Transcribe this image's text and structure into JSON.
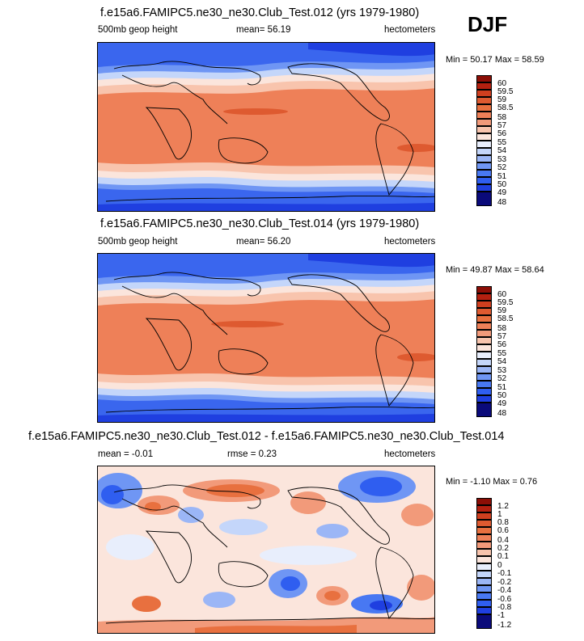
{
  "season": "DJF",
  "colors": {
    "abs": [
      "#0a0a7a",
      "#1f3fe0",
      "#2f5ef0",
      "#4878f2",
      "#6f96f4",
      "#9bb6f6",
      "#c4d6fa",
      "#e8eefc",
      "#fbe5dc",
      "#f8c4ad",
      "#f29a7a",
      "#ee8058",
      "#e8703f",
      "#de5a30",
      "#cf3f1f",
      "#b42010",
      "#8c0e06"
    ],
    "diff": [
      "#0a0a7a",
      "#1f3fe0",
      "#2f5ef0",
      "#4878f2",
      "#6f96f4",
      "#9bb6f6",
      "#c4d6fa",
      "#e8eefc",
      "#fbe5dc",
      "#f8c4ad",
      "#f29a7a",
      "#ee8058",
      "#e8703f",
      "#de5a30",
      "#cf3f1f",
      "#b42010",
      "#8c0e06"
    ]
  },
  "panels": [
    {
      "title": "f.e15a6.FAMIPC5.ne30_ne30.Club_Test.012 (yrs 1979-1980)",
      "left": "500mb geop height",
      "center": "mean=  56.19",
      "right": "hectometers",
      "minmax": "Min =  50.17 Max =  58.59"
    },
    {
      "title": "f.e15a6.FAMIPC5.ne30_ne30.Club_Test.014 (yrs 1979-1980)",
      "left": "500mb geop height",
      "center": "mean=  56.20",
      "right": "hectometers",
      "minmax": "Min =  49.87 Max =  58.64"
    },
    {
      "title": "f.e15a6.FAMIPC5.ne30_ne30.Club_Test.012 - f.e15a6.FAMIPC5.ne30_ne30.Club_Test.014",
      "left": "mean =  -0.01",
      "center": "rmse =   0.23",
      "right": "hectometers",
      "minmax": "Min =  -1.10 Max =   0.76"
    }
  ],
  "chart_data": [
    {
      "type": "heatmap",
      "title": "f.e15a6.FAMIPC5.ne30_ne30.Club_Test.012 (yrs 1979-1980)",
      "variable": "500mb geop height",
      "units": "hectometers",
      "mean": 56.19,
      "min": 50.17,
      "max": 58.59,
      "projection": "cylindrical equidistant, Pacific-centred",
      "colorbar_levels": [
        "48",
        "49",
        "50",
        "51",
        "52",
        "53",
        "54",
        "55",
        "56",
        "57",
        "58",
        "58.5",
        "59",
        "59.5",
        "60"
      ],
      "field_description": "zonal bands: blue at high latitudes, orange in tropics"
    },
    {
      "type": "heatmap",
      "title": "f.e15a6.FAMIPC5.ne30_ne30.Club_Test.014 (yrs 1979-1980)",
      "variable": "500mb geop height",
      "units": "hectometers",
      "mean": 56.2,
      "min": 49.87,
      "max": 58.64,
      "projection": "cylindrical equidistant, Pacific-centred",
      "colorbar_levels": [
        "48",
        "49",
        "50",
        "51",
        "52",
        "53",
        "54",
        "55",
        "56",
        "57",
        "58",
        "58.5",
        "59",
        "59.5",
        "60"
      ]
    },
    {
      "type": "heatmap",
      "title": "f.e15a6.FAMIPC5.ne30_ne30.Club_Test.012 - f.e15a6.FAMIPC5.ne30_ne30.Club_Test.014",
      "units": "hectometers",
      "mean": -0.01,
      "rmse": 0.23,
      "min": -1.1,
      "max": 0.76,
      "projection": "cylindrical equidistant, Pacific-centred",
      "colorbar_levels": [
        "-1.2",
        "-1",
        "-0.8",
        "-0.6",
        "-0.4",
        "-0.2",
        "-0.1",
        "0",
        "0.1",
        "0.2",
        "0.4",
        "0.6",
        "0.8",
        "1",
        "1.2"
      ]
    }
  ]
}
